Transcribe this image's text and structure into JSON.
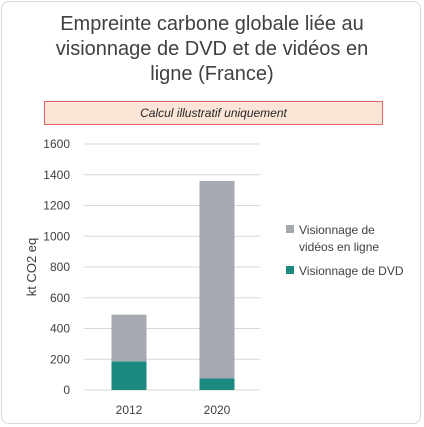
{
  "title_lines": [
    "Empreinte carbone globale liée au",
    "visionnage de DVD et de vidéos en",
    "ligne (France)"
  ],
  "note": "Calcul illustratif uniquement",
  "colors": {
    "online": "#a5a9b0",
    "dvd": "#1a8a80",
    "grid": "#d9d9d9"
  },
  "chart_data": {
    "type": "bar",
    "stacked": true,
    "categories": [
      "2012",
      "2020"
    ],
    "series": [
      {
        "name": "Visionnage de DVD",
        "values": [
          185,
          75
        ]
      },
      {
        "name": "Visionnage de vidéos en ligne",
        "values": [
          305,
          1285
        ]
      }
    ],
    "title": "Empreinte carbone globale liée au visionnage de DVD et de vidéos en ligne (France)",
    "xlabel": "",
    "ylabel": "kt CO2 eq",
    "ylim": [
      0,
      1600
    ],
    "yticks": [
      "0",
      "200",
      "400",
      "600",
      "800",
      "1000",
      "1200",
      "1400",
      "1600"
    ],
    "grid": true,
    "legend_position": "right",
    "legend": [
      {
        "lines": [
          "Visionnage de",
          "vidéos en ligne"
        ],
        "series": "online"
      },
      {
        "lines": [
          "Visionnage de DVD"
        ],
        "series": "dvd"
      }
    ]
  }
}
